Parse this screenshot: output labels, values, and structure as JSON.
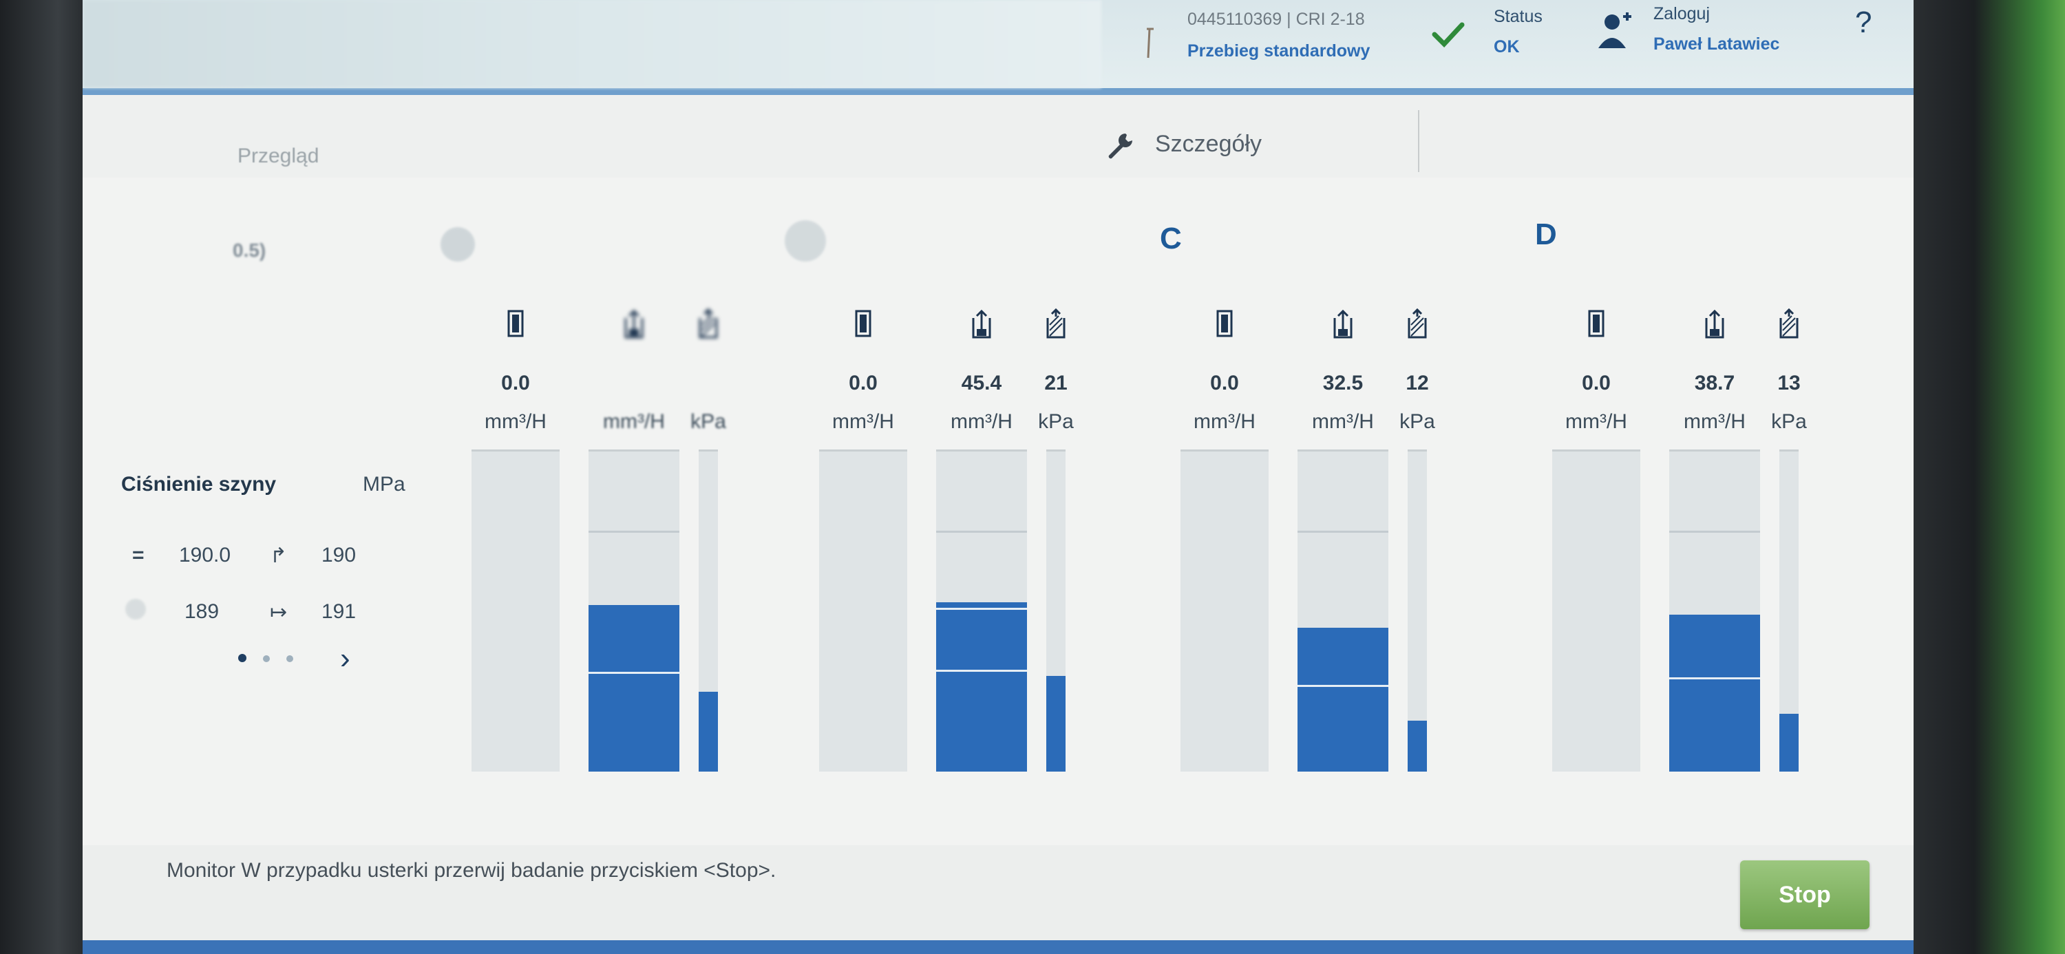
{
  "topbar": {
    "part_number": "0445110369 | CRI 2-18",
    "procedure": "Przebieg standardowy",
    "status_label": "Status",
    "status_value": "OK",
    "login_label": "Zaloguj",
    "user_name": "Paweł Latawiec",
    "help": "?"
  },
  "tabs": {
    "overview": "Przegląd",
    "details": "Szczegóły"
  },
  "faded_label": "0.5)",
  "rail": {
    "title": "Ciśnienie szyny",
    "unit": "MPa",
    "setpoint_symbol": "=",
    "setpoint": "190.0",
    "target_symbol": "↱",
    "target": "190",
    "measured": "189",
    "range_symbol": "↦",
    "range_value": "191",
    "next": "›"
  },
  "groups": [
    {
      "letter": "",
      "columns": [
        {
          "icon": "injector-icon",
          "value": "0.0",
          "unit": "mm³/H",
          "fill_pct": 0
        },
        {
          "icon": "return-icon",
          "value": "",
          "unit": "mm³/H",
          "fill_pct": 52
        },
        {
          "icon": "pressure-icon",
          "value": "",
          "unit": "kPa",
          "fill_pct": 25
        }
      ]
    },
    {
      "letter": "",
      "columns": [
        {
          "icon": "injector-icon",
          "value": "0.0",
          "unit": "mm³/H",
          "fill_pct": 0
        },
        {
          "icon": "return-icon",
          "value": "45.4",
          "unit": "mm³/H",
          "fill_pct": 53
        },
        {
          "icon": "pressure-icon",
          "value": "21",
          "unit": "kPa",
          "fill_pct": 30
        }
      ]
    },
    {
      "letter": "C",
      "columns": [
        {
          "icon": "injector-icon",
          "value": "0.0",
          "unit": "mm³/H",
          "fill_pct": 0
        },
        {
          "icon": "return-icon",
          "value": "32.5",
          "unit": "mm³/H",
          "fill_pct": 45
        },
        {
          "icon": "pressure-icon",
          "value": "12",
          "unit": "kPa",
          "fill_pct": 16
        }
      ]
    },
    {
      "letter": "D",
      "columns": [
        {
          "icon": "injector-icon",
          "value": "0.0",
          "unit": "mm³/H",
          "fill_pct": 0
        },
        {
          "icon": "return-icon",
          "value": "38.7",
          "unit": "mm³/H",
          "fill_pct": 49
        },
        {
          "icon": "pressure-icon",
          "value": "13",
          "unit": "kPa",
          "fill_pct": 18
        }
      ]
    }
  ],
  "footer": {
    "message": "Monitor W przypadku usterki przerwij badanie przyciskiem <Stop>.",
    "stop_label": "Stop"
  },
  "colors": {
    "fill": "#2b6bb8",
    "stop": "#7bb05a",
    "accent": "#2f6db5"
  }
}
